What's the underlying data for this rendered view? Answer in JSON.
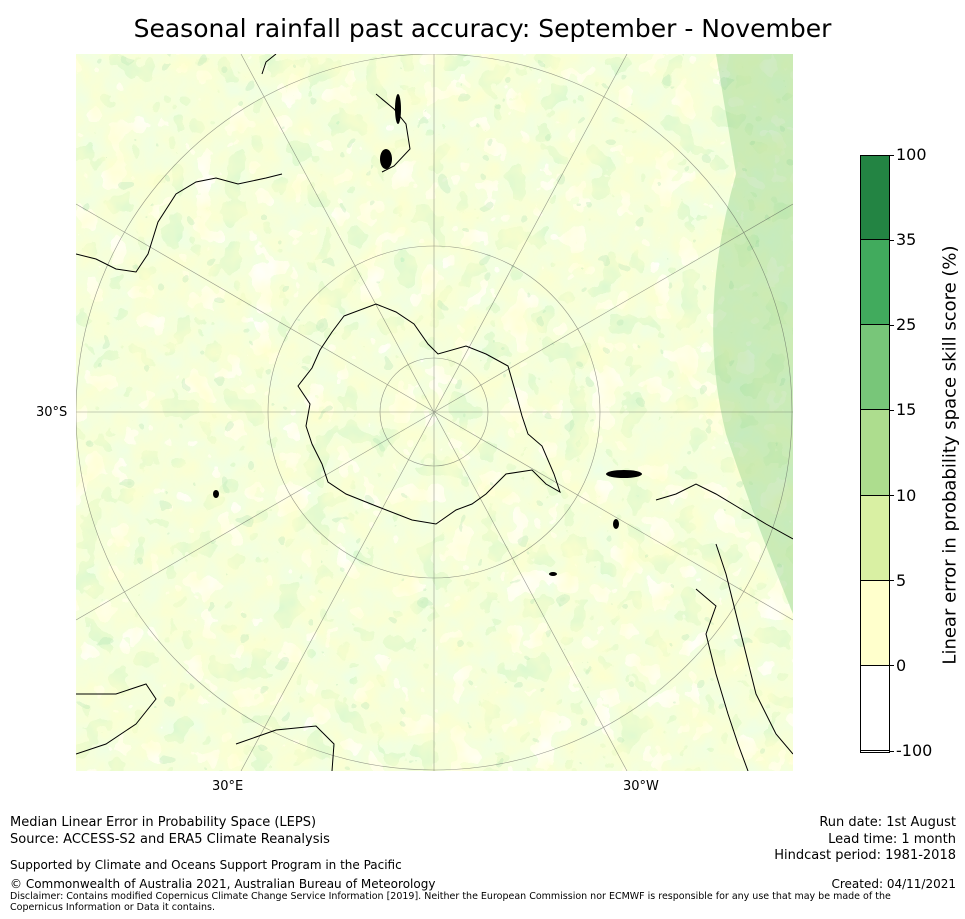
{
  "title": "Seasonal rainfall past accuracy: September - November",
  "map": {
    "lat_label": "30°S",
    "lon_labels": [
      "30°E",
      "30°W"
    ],
    "palette": {
      "ocean_white": "#ffffff",
      "c0": "#ffffcc",
      "c1": "#d9f0a3",
      "c2": "#addd8e",
      "c3": "#78c679",
      "c4": "#41ab5d",
      "c5": "#238443",
      "coast": "#000000"
    }
  },
  "colorbar": {
    "label": "Linear error in probability space skill score (%)",
    "ticks": [
      "100",
      "35",
      "25",
      "15",
      "10",
      "5",
      "0",
      "-100"
    ],
    "colors": [
      "#238443",
      "#41ab5d",
      "#78c679",
      "#addd8e",
      "#d9f0a3",
      "#ffffcc",
      "#ffffff"
    ]
  },
  "footer": {
    "left_line1": "Median Linear Error in Probability Space (LEPS)",
    "left_line2": "Source: ACCESS-S2 and ERA5 Climate Reanalysis",
    "support": "Supported by Climate and Oceans Support Program in the Pacific",
    "copyright": "© Commonwealth of Australia 2021, Australian Bureau of Meteorology",
    "disclaimer": "Disclaimer: Contains modified Copernicus Climate Change Service Information [2019]. Neither the European Commission nor ECMWF is responsible for any use that may be made of the Copernicus Information or Data it contains.",
    "run_date": "Run date: 1st August",
    "lead_time": "Lead time: 1 month",
    "hindcast": "Hindcast period: 1981-2018",
    "created": "Created: 04/11/2021"
  }
}
